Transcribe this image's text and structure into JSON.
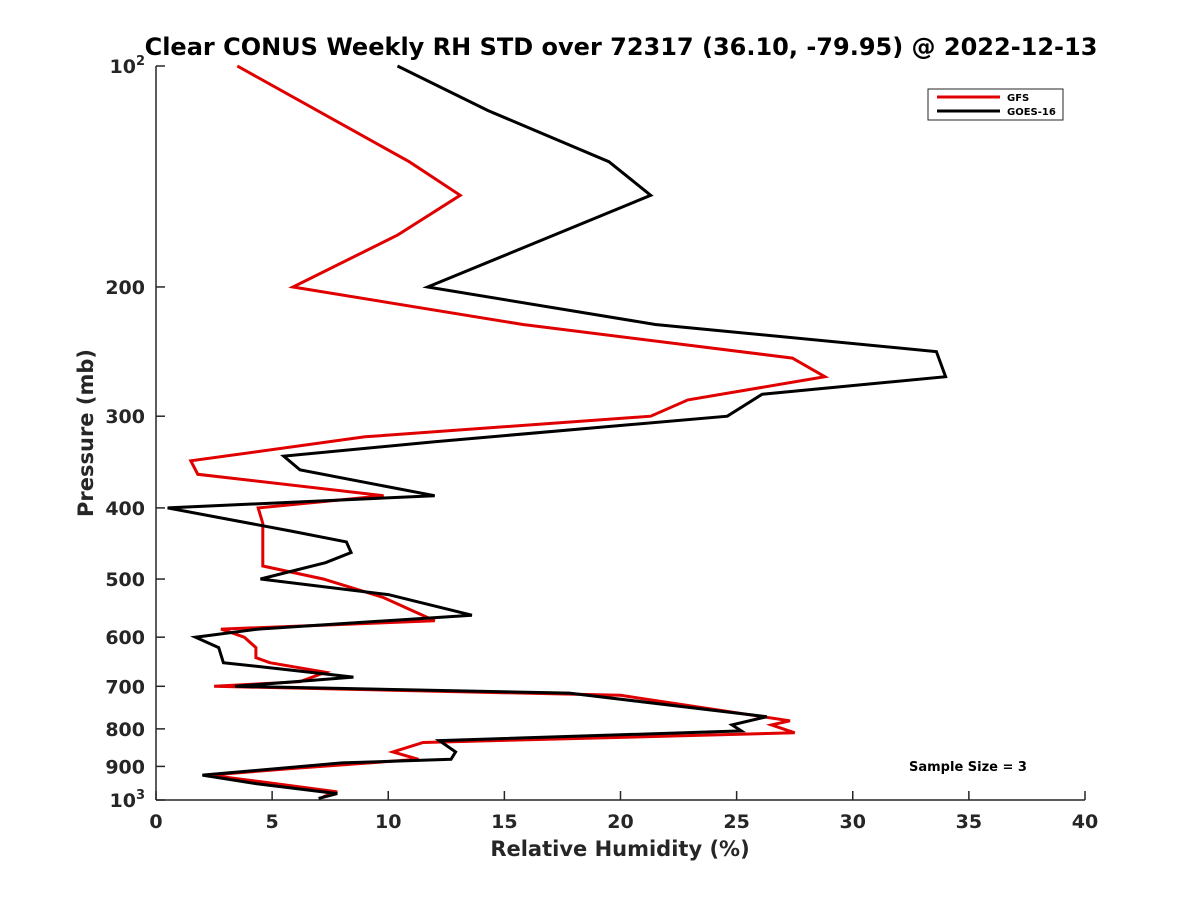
{
  "chart_data": {
    "type": "line",
    "title": "Clear CONUS Weekly RH STD over 72317 (36.10, -79.95) @ 2022-12-13",
    "xlabel": "Relative Humidity (%)",
    "ylabel": "Pressure (mb)",
    "xlim": [
      0,
      40
    ],
    "ylim": [
      100,
      1000
    ],
    "yscale": "log",
    "y_reversed": true,
    "grid": false,
    "legend_position": "top-right",
    "x_ticks": [
      "0",
      "5",
      "10",
      "15",
      "20",
      "25",
      "30",
      "35",
      "40"
    ],
    "y_ticks": [
      {
        "value": 100,
        "label": "10",
        "sup": "2"
      },
      {
        "value": 200,
        "label": "200",
        "sup": ""
      },
      {
        "value": 300,
        "label": "300",
        "sup": ""
      },
      {
        "value": 400,
        "label": "400",
        "sup": ""
      },
      {
        "value": 500,
        "label": "500",
        "sup": ""
      },
      {
        "value": 600,
        "label": "600",
        "sup": ""
      },
      {
        "value": 700,
        "label": "700",
        "sup": ""
      },
      {
        "value": 800,
        "label": "800",
        "sup": ""
      },
      {
        "value": 900,
        "label": "900",
        "sup": ""
      },
      {
        "value": 1000,
        "label": "10",
        "sup": "3"
      }
    ],
    "series": [
      {
        "name": "GFS",
        "color": "#e00000",
        "points": [
          [
            3.5,
            100
          ],
          [
            10.9,
            135
          ],
          [
            13.1,
            150
          ],
          [
            10.4,
            170
          ],
          [
            5.9,
            200
          ],
          [
            15.8,
            225
          ],
          [
            27.4,
            250
          ],
          [
            28.8,
            265
          ],
          [
            22.9,
            285
          ],
          [
            21.3,
            300
          ],
          [
            9.0,
            320
          ],
          [
            1.5,
            345
          ],
          [
            1.8,
            360
          ],
          [
            9.8,
            385
          ],
          [
            4.4,
            400
          ],
          [
            4.6,
            420
          ],
          [
            4.6,
            455
          ],
          [
            4.6,
            480
          ],
          [
            7.2,
            500
          ],
          [
            9.8,
            530
          ],
          [
            12.0,
            570
          ],
          [
            2.8,
            585
          ],
          [
            3.8,
            600
          ],
          [
            4.3,
            620
          ],
          [
            4.3,
            640
          ],
          [
            4.9,
            650
          ],
          [
            7.3,
            670
          ],
          [
            6.2,
            690
          ],
          [
            2.5,
            700
          ],
          [
            20.0,
            720
          ],
          [
            27.3,
            780
          ],
          [
            26.5,
            790
          ],
          [
            27.5,
            810
          ],
          [
            11.5,
            835
          ],
          [
            10.2,
            860
          ],
          [
            11.3,
            880
          ],
          [
            6.0,
            905
          ],
          [
            2.3,
            925
          ],
          [
            4.6,
            945
          ],
          [
            7.8,
            975
          ],
          [
            7.2,
            990
          ]
        ]
      },
      {
        "name": "GOES-16",
        "color": "#000000",
        "points": [
          [
            10.4,
            100
          ],
          [
            14.3,
            115
          ],
          [
            19.5,
            135
          ],
          [
            21.3,
            150
          ],
          [
            11.7,
            200
          ],
          [
            21.5,
            225
          ],
          [
            33.6,
            245
          ],
          [
            34.0,
            265
          ],
          [
            26.1,
            280
          ],
          [
            24.6,
            300
          ],
          [
            12.0,
            325
          ],
          [
            5.5,
            340
          ],
          [
            6.2,
            355
          ],
          [
            12.0,
            385
          ],
          [
            0.5,
            400
          ],
          [
            5.8,
            430
          ],
          [
            8.2,
            445
          ],
          [
            8.4,
            460
          ],
          [
            7.3,
            475
          ],
          [
            4.5,
            500
          ],
          [
            10.0,
            525
          ],
          [
            13.6,
            560
          ],
          [
            4.4,
            585
          ],
          [
            1.7,
            600
          ],
          [
            2.7,
            620
          ],
          [
            2.9,
            650
          ],
          [
            4.8,
            660
          ],
          [
            8.5,
            680
          ],
          [
            3.4,
            700
          ],
          [
            17.8,
            715
          ],
          [
            26.3,
            770
          ],
          [
            24.8,
            790
          ],
          [
            25.2,
            805
          ],
          [
            12.2,
            830
          ],
          [
            12.9,
            860
          ],
          [
            12.7,
            880
          ],
          [
            8.0,
            890
          ],
          [
            2.0,
            925
          ],
          [
            4.3,
            950
          ],
          [
            7.8,
            980
          ],
          [
            7.0,
            995
          ]
        ]
      }
    ],
    "annotations": [
      {
        "text": "Sample Size = 3"
      }
    ]
  }
}
